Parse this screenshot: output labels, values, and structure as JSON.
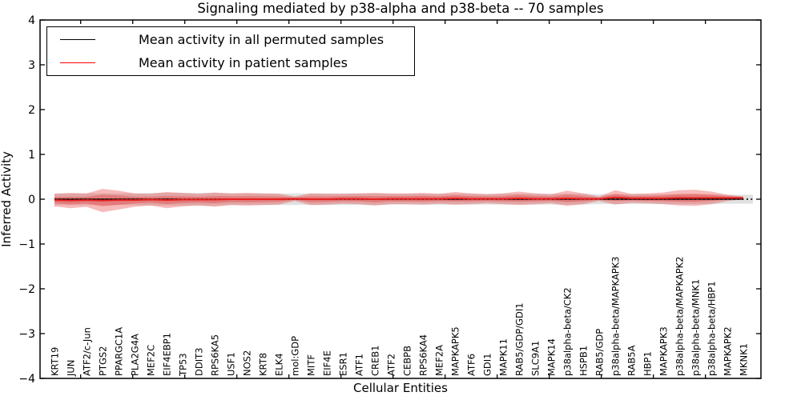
{
  "figure": {
    "title": "Signaling mediated by p38-alpha and p38-beta -- 70 samples",
    "xlabel": "Cellular Entities",
    "ylabel": "Inferred Activity"
  },
  "legend": {
    "entries": [
      {
        "label": "Mean activity in all permuted samples",
        "color": "#000000"
      },
      {
        "label": "Mean activity in patient samples",
        "color": "#ff0000"
      }
    ]
  },
  "chart_data": {
    "type": "line",
    "title": "Signaling mediated by p38-alpha and p38-beta -- 70 samples",
    "xlabel": "Cellular Entities",
    "ylabel": "Inferred Activity",
    "ylim": [
      -4,
      4
    ],
    "yticks": {
      "values": [
        4,
        3,
        2,
        1,
        0,
        -1,
        -2,
        -3,
        -4
      ],
      "labels": [
        "4",
        "3",
        "2",
        "1",
        "0",
        "−1",
        "−2",
        "−3",
        "−4"
      ]
    },
    "grid": false,
    "legend_position": "upper-left",
    "categories": [
      "KRT19",
      "JUN",
      "ATF2/c-Jun",
      "PTGS2",
      "PPARGC1A",
      "PLA2G4A",
      "MEF2C",
      "EIF4EBP1",
      "TP53",
      "DDIT3",
      "RPS6KA5",
      "USF1",
      "NOS2",
      "KRT8",
      "ELK4",
      "mol:GDP",
      "MITF",
      "EIF4E",
      "ESR1",
      "ATF1",
      "CREB1",
      "ATF2",
      "CEBPB",
      "RPS6KA4",
      "MEF2A",
      "MAPKAPK5",
      "ATF6",
      "GDI1",
      "MAPK11",
      "RAB5/GDP/GDI1",
      "SLC9A1",
      "MAPK14",
      "p38alpha-beta/CK2",
      "HSPB1",
      "RAB5/GDP",
      "p38alpha-beta/MAPKAPK3",
      "RAB5A",
      "HBP1",
      "MAPKAPK3",
      "p38alpha-beta/MAPKAPK2",
      "p38alpha-beta/MNK1",
      "p38alpha-beta/HBP1",
      "MAPKAPK2",
      "MKNK1"
    ],
    "series": [
      {
        "name": "Mean activity in all permuted samples",
        "color": "#000000",
        "width": 1.3,
        "values": [
          0,
          0,
          0,
          0,
          0,
          0,
          0,
          0,
          0,
          0,
          0,
          0,
          0,
          0,
          0,
          0,
          0,
          0,
          0,
          0,
          0,
          0,
          0,
          0,
          0,
          0,
          0,
          0,
          0,
          0,
          0,
          0,
          0,
          0,
          0,
          0,
          0,
          0,
          0,
          0,
          0,
          0,
          0,
          0
        ]
      },
      {
        "name": "Mean activity in patient samples",
        "color": "#e82020",
        "width": 2.0,
        "values": [
          -0.02,
          -0.03,
          -0.02,
          -0.03,
          -0.02,
          -0.02,
          -0.01,
          -0.02,
          -0.01,
          -0.01,
          -0.01,
          0,
          0,
          0,
          0,
          0.01,
          0,
          0,
          0.01,
          0.01,
          0,
          0.01,
          0.01,
          0.01,
          0.01,
          0.02,
          0.01,
          0.01,
          0.01,
          0.02,
          0.01,
          0.01,
          0.02,
          0.01,
          0.01,
          0.04,
          0.02,
          0.02,
          0.02,
          0.03,
          0.03,
          0.03,
          0.03,
          0.03
        ]
      }
    ],
    "bands": [
      {
        "name": "permuted-samples-range",
        "center_series": 0,
        "color": "rgba(120,120,120,0.22)",
        "inner_scale": null,
        "half_widths": [
          0.13,
          0.13,
          0.13,
          0.13,
          0.13,
          0.13,
          0.14,
          0.14,
          0.14,
          0.14,
          0.14,
          0.13,
          0.13,
          0.13,
          0.13,
          0.13,
          0.13,
          0.13,
          0.13,
          0.13,
          0.13,
          0.12,
          0.12,
          0.12,
          0.12,
          0.12,
          0.12,
          0.12,
          0.12,
          0.12,
          0.12,
          0.12,
          0.12,
          0.12,
          0.11,
          0.11,
          0.11,
          0.11,
          0.11,
          0.11,
          0.11,
          0.11,
          0.1,
          0.1
        ]
      },
      {
        "name": "patient-samples-range",
        "center_series": 1,
        "color": "rgba(228,26,28,0.30)",
        "inner_scale": 0.5,
        "half_widths": [
          0.14,
          0.17,
          0.15,
          0.26,
          0.21,
          0.15,
          0.13,
          0.18,
          0.15,
          0.13,
          0.16,
          0.13,
          0.14,
          0.13,
          0.12,
          0.05,
          0.13,
          0.12,
          0.11,
          0.12,
          0.14,
          0.12,
          0.12,
          0.13,
          0.11,
          0.14,
          0.12,
          0.1,
          0.12,
          0.15,
          0.12,
          0.1,
          0.17,
          0.12,
          0.05,
          0.16,
          0.1,
          0.11,
          0.13,
          0.17,
          0.18,
          0.14,
          0.07,
          0.03
        ]
      }
    ],
    "zero_line": {
      "value": 0,
      "style": "dotted",
      "color": "#000000"
    }
  }
}
